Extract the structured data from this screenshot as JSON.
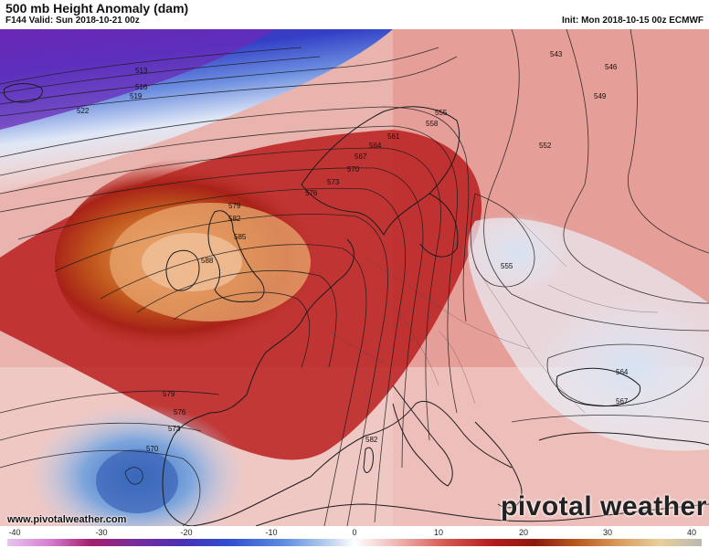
{
  "header": {
    "title": "500 mb Height Anomaly (dam)",
    "valid": "F144 Valid: Sun 2018-10-21 00z",
    "init": "Init: Mon 2018-10-15 00z ECMWF"
  },
  "footer": {
    "website": "www.pivotalweather.com",
    "brand": "pivotal weather"
  },
  "contour_labels": [
    "513",
    "516",
    "519",
    "522",
    "543",
    "546",
    "549",
    "552",
    "555",
    "558",
    "561",
    "564",
    "567",
    "570",
    "573",
    "576",
    "579",
    "582",
    "585",
    "588",
    "555",
    "564",
    "567",
    "570",
    "573",
    "576",
    "579",
    "582"
  ],
  "colorbar": {
    "ticks": [
      "-40",
      "-30",
      "-20",
      "-10",
      "0",
      "10",
      "20",
      "30",
      "40"
    ],
    "min": -40,
    "max": 40
  }
}
